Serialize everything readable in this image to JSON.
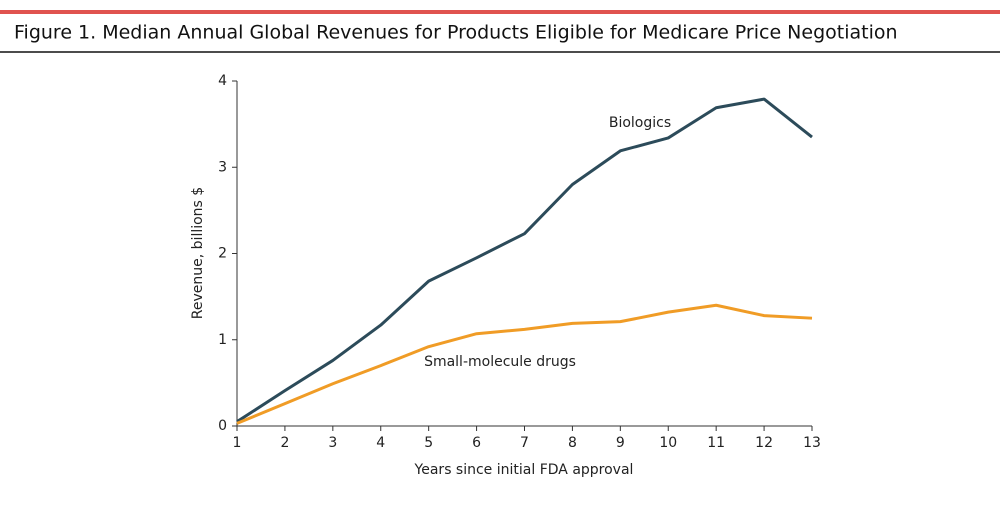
{
  "chart_data": {
    "type": "line",
    "title": "Figure 1. Median Annual Global Revenues for Products Eligible for Medicare Price Negotiation",
    "x_label": "Years since initial FDA approval",
    "y_label": "Revenue, billions $",
    "x": [
      1,
      2,
      3,
      4,
      5,
      6,
      7,
      8,
      9,
      10,
      11,
      12,
      13
    ],
    "series": [
      {
        "name": "Biologics",
        "color": "#2c4b5a",
        "values": [
          0.05,
          0.41,
          0.76,
          1.17,
          1.68,
          1.95,
          2.23,
          2.8,
          3.19,
          3.34,
          3.69,
          3.79,
          3.35
        ]
      },
      {
        "name": "Small-molecule drugs",
        "color": "#f09c26",
        "values": [
          0.03,
          0.26,
          0.49,
          0.7,
          0.92,
          1.07,
          1.12,
          1.19,
          1.21,
          1.32,
          1.4,
          1.28,
          1.25
        ]
      }
    ],
    "xlim": [
      1,
      13
    ],
    "xticks": [
      1,
      2,
      3,
      4,
      5,
      6,
      7,
      8,
      9,
      10,
      11,
      12,
      13
    ],
    "ylim": [
      0,
      4
    ],
    "yticks": [
      0,
      1,
      2,
      3,
      4
    ],
    "grid": false
  }
}
